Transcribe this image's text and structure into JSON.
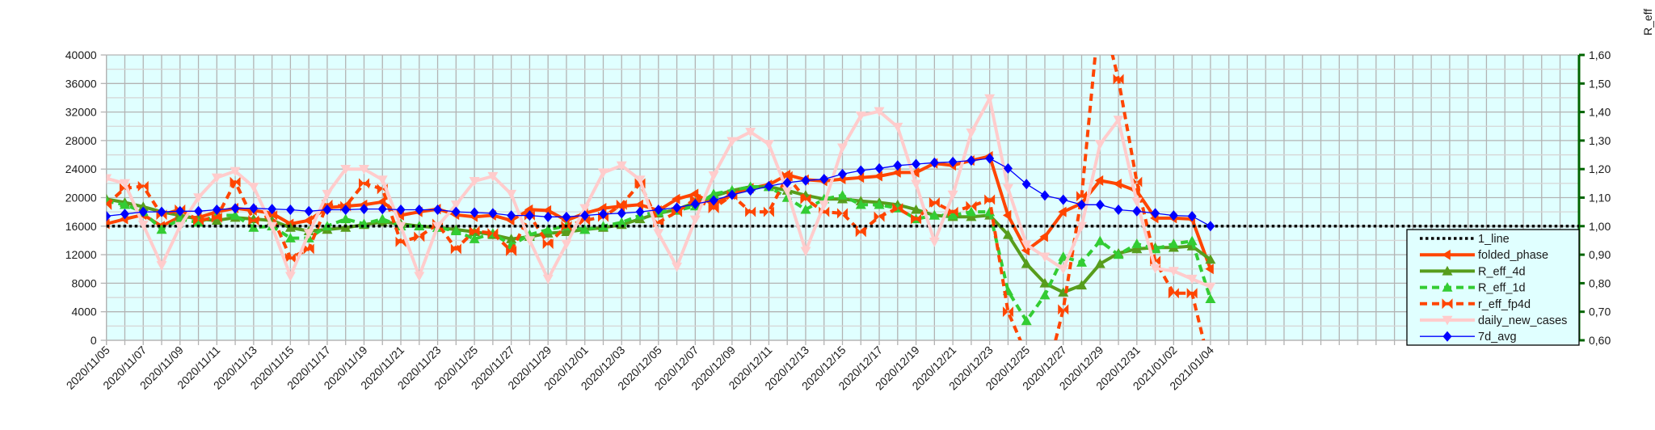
{
  "chart_data": {
    "type": "line",
    "title": "",
    "xlabel": "",
    "ylabel": "",
    "y2label": "R_eff",
    "ylim": [
      0,
      40000
    ],
    "y2lim": [
      0.6,
      1.6
    ],
    "grid": true,
    "legend_position": "bottom-right",
    "x_step": "1 day, starting 2020/11/05",
    "x_tick_labels": [
      "2020/11/05",
      "2020/11/07",
      "2020/11/09",
      "2020/11/11",
      "2020/11/13",
      "2020/11/15",
      "2020/11/17",
      "2020/11/19",
      "2020/11/21",
      "2020/11/23",
      "2020/11/25",
      "2020/11/27",
      "2020/11/29",
      "2020/12/01",
      "2020/12/03",
      "2020/12/05",
      "2020/12/07",
      "2020/12/09",
      "2020/12/11",
      "2020/12/13",
      "2020/12/15",
      "2020/12/17",
      "2020/12/19",
      "2020/12/21",
      "2020/12/23",
      "2020/12/25",
      "2020/12/27",
      "2020/12/29",
      "2020/12/31",
      "2021/01/02",
      "2021/01/04"
    ],
    "y_tick_labels": [
      "0",
      "4000",
      "8000",
      "12000",
      "16000",
      "20000",
      "24000",
      "28000",
      "32000",
      "36000",
      "40000"
    ],
    "y2_tick_labels": [
      "0,60",
      "0,70",
      "0,80",
      "0,90",
      "1,00",
      "1,10",
      "1,20",
      "1,30",
      "1,40",
      "1,50",
      "1,60"
    ],
    "series": [
      {
        "name": "1_line",
        "axis": "right",
        "color": "#000000",
        "style": "dotted",
        "marker": "none",
        "constant": 1.0
      },
      {
        "name": "folded_phase",
        "axis": "right",
        "color": "#ff4500",
        "style": "solid",
        "marker": "left-triangle",
        "values": [
          1.008,
          1.025,
          1.04,
          1.0,
          1.033,
          1.03,
          1.05,
          1.063,
          1.055,
          1.045,
          1.008,
          1.02,
          1.065,
          1.07,
          1.075,
          1.085,
          1.038,
          1.05,
          1.06,
          1.04,
          1.033,
          1.038,
          1.02,
          1.058,
          1.055,
          1.02,
          1.045,
          1.063,
          1.07,
          1.075,
          1.055,
          1.095,
          1.113,
          1.075,
          1.113,
          1.133,
          1.145,
          1.18,
          1.163,
          1.158,
          1.165,
          1.17,
          1.175,
          1.188,
          1.188,
          1.22,
          1.213,
          1.23,
          1.245,
          1.038,
          0.915,
          0.963,
          1.05,
          1.08,
          1.16,
          1.148,
          1.123,
          1.028,
          1.028,
          1.025,
          0.85
        ]
      },
      {
        "name": "R_eff_4d",
        "axis": "right",
        "color": "#579d1c",
        "style": "solid",
        "marker": "up-triangle",
        "values": [
          1.095,
          1.083,
          1.068,
          1.05,
          1.038,
          1.025,
          1.02,
          1.03,
          1.025,
          1.02,
          0.995,
          0.983,
          0.988,
          0.995,
          1.005,
          1.015,
          1.008,
          1.0,
          0.995,
          0.988,
          0.98,
          0.97,
          0.955,
          0.963,
          0.975,
          0.98,
          0.988,
          0.995,
          1.005,
          1.025,
          1.045,
          1.058,
          1.083,
          1.105,
          1.125,
          1.138,
          1.138,
          1.125,
          1.108,
          1.095,
          1.095,
          1.088,
          1.083,
          1.075,
          1.058,
          1.038,
          1.033,
          1.033,
          1.038,
          0.97,
          0.868,
          0.8,
          0.768,
          0.793,
          0.868,
          0.905,
          0.92,
          0.925,
          0.925,
          0.93,
          0.883
        ]
      },
      {
        "name": "R_eff_1d",
        "axis": "right",
        "color": "#33cc33",
        "style": "dashed",
        "marker": "up-triangle",
        "values": [
          1.088,
          1.075,
          1.05,
          0.988,
          1.025,
          1.013,
          1.038,
          1.038,
          0.995,
          1.0,
          0.958,
          0.958,
          1.0,
          1.025,
          1.008,
          1.025,
          1.0,
          1.0,
          0.995,
          0.983,
          0.955,
          0.975,
          0.933,
          0.97,
          0.988,
          1.0,
          0.988,
          1.0,
          1.013,
          1.038,
          1.05,
          1.055,
          1.07,
          1.113,
          1.125,
          1.138,
          1.138,
          1.1,
          1.058,
          1.095,
          1.108,
          1.075,
          1.075,
          1.063,
          1.025,
          1.038,
          1.038,
          1.05,
          1.05,
          0.773,
          0.668,
          0.758,
          0.893,
          0.873,
          0.948,
          0.9,
          0.938,
          0.92,
          0.938,
          0.948,
          0.745
        ]
      },
      {
        "name": "r_eff_fp4d",
        "axis": "right",
        "color": "#ff4500",
        "style": "dashed",
        "marker": "bowtie",
        "values": [
          1.075,
          1.133,
          1.14,
          1.04,
          1.058,
          1.02,
          1.03,
          1.155,
          1.02,
          1.038,
          0.888,
          0.92,
          1.075,
          1.07,
          1.15,
          1.13,
          0.945,
          0.963,
          1.008,
          0.92,
          0.983,
          0.975,
          0.913,
          1.038,
          0.938,
          1.0,
          1.02,
          1.033,
          1.075,
          1.15,
          1.013,
          1.05,
          1.095,
          1.063,
          1.108,
          1.05,
          1.05,
          1.175,
          1.095,
          1.05,
          1.045,
          0.98,
          1.033,
          1.063,
          1.025,
          1.083,
          1.05,
          1.07,
          1.093,
          0.7,
          0.55,
          0.45,
          0.708,
          1.105,
          1.775,
          1.515,
          1.155,
          0.878,
          0.765,
          0.765,
          0.5
        ]
      },
      {
        "name": "daily_new_cases",
        "axis": "left",
        "color": "#ffcccc",
        "style": "solid",
        "marker": "down-triangle",
        "values": [
          22700,
          22000,
          16200,
          10500,
          16000,
          20000,
          22800,
          23700,
          21500,
          16000,
          9000,
          15000,
          20500,
          24000,
          24000,
          22500,
          16000,
          9000,
          16000,
          19000,
          22300,
          23000,
          20500,
          14000,
          8600,
          13500,
          18500,
          23500,
          24500,
          22500,
          15000,
          10300,
          16900,
          23100,
          27900,
          29200,
          27500,
          20900,
          12500,
          19000,
          27000,
          31500,
          32100,
          29900,
          21900,
          13800,
          20400,
          29100,
          33900,
          21300,
          13400,
          11700,
          10000,
          16000,
          27500,
          30900,
          19400,
          10100,
          9700,
          8600,
          7500
        ]
      },
      {
        "name": "7d_avg",
        "axis": "left",
        "color": "#0000ff",
        "style": "thin",
        "marker": "diamond",
        "values": [
          17400,
          17700,
          18000,
          18000,
          18100,
          18100,
          18300,
          18500,
          18500,
          18400,
          18300,
          18100,
          18300,
          18300,
          18400,
          18400,
          18300,
          18300,
          18300,
          18000,
          17900,
          17800,
          17500,
          17500,
          17300,
          17300,
          17500,
          17700,
          17800,
          18000,
          18300,
          18600,
          19100,
          19600,
          20400,
          21000,
          21600,
          22100,
          22400,
          22600,
          23300,
          23800,
          24100,
          24500,
          24700,
          24900,
          25000,
          25200,
          25500,
          24100,
          21900,
          20300,
          19700,
          19000,
          19000,
          18300,
          18100,
          17800,
          17500,
          17400,
          16000
        ]
      }
    ]
  }
}
